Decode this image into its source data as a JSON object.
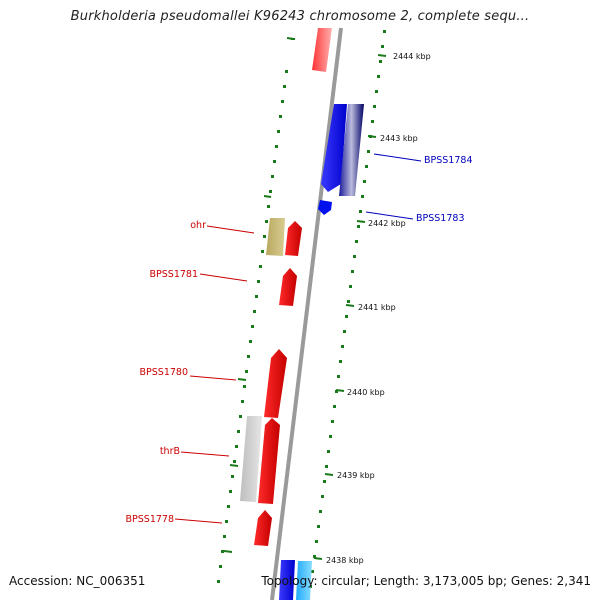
{
  "title": "Burkholderia pseudomallei K96243 chromosome 2, complete sequ...",
  "footer": {
    "accession": "Accession: NC_006351",
    "topology": "Topology: circular; Length: 3,173,005 bp; Genes: 2,341"
  },
  "ticks": [
    "2444 kbp",
    "2443 kbp",
    "2442 kbp",
    "2441 kbp",
    "2440 kbp",
    "2439 kbp",
    "2438 kbp"
  ],
  "genes": [
    {
      "id": "ohr",
      "label": "ohr",
      "strand": "reverse",
      "color": "#cc0000"
    },
    {
      "id": "bpss1781",
      "label": "BPSS1781",
      "strand": "reverse",
      "color": "#cc0000"
    },
    {
      "id": "bpss1780",
      "label": "BPSS1780",
      "strand": "reverse",
      "color": "#cc0000"
    },
    {
      "id": "thrb",
      "label": "thrB",
      "strand": "reverse",
      "color": "#cc0000"
    },
    {
      "id": "bpss1778",
      "label": "BPSS1778",
      "strand": "reverse",
      "color": "#cc0000"
    },
    {
      "id": "bpss1784",
      "label": "BPSS1784",
      "strand": "forward",
      "color": "#0000bb"
    },
    {
      "id": "bpss1783",
      "label": "BPSS1783",
      "strand": "forward",
      "color": "#0000bb"
    }
  ],
  "colors": {
    "backbone": "#8c8c8c",
    "tick_marks": "#1a7a1a",
    "forward_cds": "#0000ff",
    "forward_cds_dark": "#00008b",
    "forward_light": "#00bfff",
    "reverse_cds": "#ff0000",
    "reverse_other": "#c8b878",
    "reverse_gray": "#c8c8c8"
  }
}
